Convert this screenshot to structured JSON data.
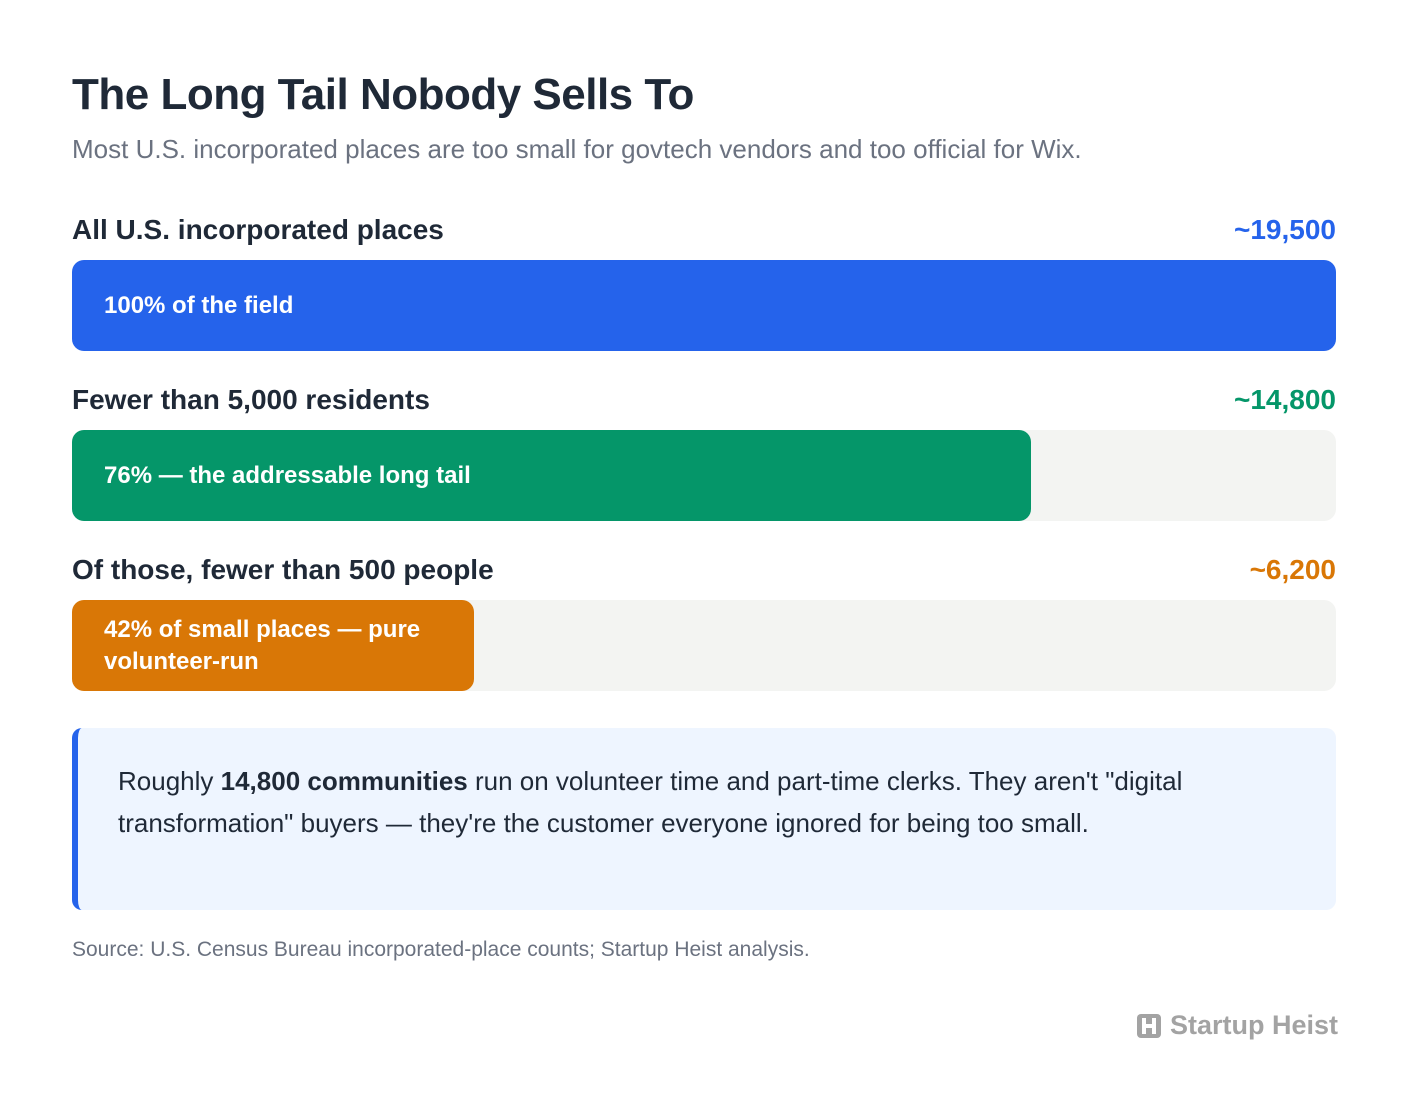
{
  "chart_data": {
    "type": "bar",
    "orientation": "horizontal",
    "title": "The Long Tail Nobody Sells To",
    "subtitle": "Most U.S. incorporated places are too small for govtech vendors and too official for Wix.",
    "categories": [
      "All U.S. incorporated places",
      "Fewer than 5,000 residents",
      "Of those, fewer than 500 people"
    ],
    "values": [
      19500,
      14800,
      6200
    ],
    "value_labels": [
      "~19,500",
      "~14,800",
      "~6,200"
    ],
    "bar_labels": [
      "100% of the field",
      "76% — the addressable long tail",
      "42% of small places — pure volunteer-run"
    ],
    "colors": [
      "#2563eb",
      "#059669",
      "#d97706"
    ],
    "xlim": [
      0,
      19500
    ]
  },
  "callout": {
    "before": "Roughly ",
    "bold": "14,800 communities",
    "after": " run on volunteer time and part-time clerks. They aren't \"digital transformation\" buyers — they're the customer everyone ignored for being too small."
  },
  "source": "Source: U.S. Census Bureau incorporated-place counts; Startup Heist analysis.",
  "brand": "Startup Heist"
}
